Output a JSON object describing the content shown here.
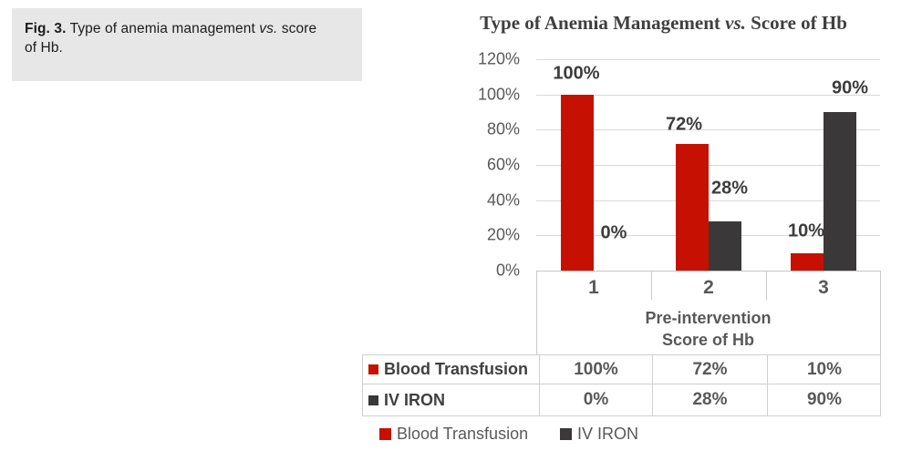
{
  "caption": {
    "fig_label": "Fig. 3.",
    "text_before_vs": " Type of anemia management ",
    "vs_word": "vs.",
    "text_after_vs": " score of Hb."
  },
  "chart": {
    "title_before_vs": "Type of Anemia Management ",
    "title_vs": "vs.",
    "title_after_vs": " Score of Hb",
    "xlabel_line1": "Pre-intervention",
    "xlabel_line2": "Score of Hb"
  },
  "chart_data": {
    "type": "bar",
    "title": "Type of Anemia Management vs. Score of Hb",
    "categories": [
      "1",
      "2",
      "3"
    ],
    "series": [
      {
        "name": "Blood Transfusion",
        "color": "#c61102",
        "values": [
          100,
          72,
          10
        ],
        "value_labels": [
          "100%",
          "72%",
          "10%"
        ]
      },
      {
        "name": "IV IRON",
        "color": "#3a3838",
        "values": [
          0,
          28,
          90
        ],
        "value_labels": [
          "0%",
          "28%",
          "90%"
        ]
      }
    ],
    "xlabel": "Pre-intervention Score of Hb",
    "ylabel": "",
    "ylim": [
      0,
      120
    ],
    "ytick_step": 20,
    "ytick_labels": [
      "0%",
      "20%",
      "40%",
      "60%",
      "80%",
      "100%",
      "120%"
    ],
    "grid": true,
    "legend_position": "bottom",
    "data_table_shown": true
  },
  "data_table": {
    "rows": [
      {
        "swatch_color": "#c61102",
        "label": "Blood Transfusion",
        "values": [
          "100%",
          "72%",
          "10%"
        ]
      },
      {
        "swatch_color": "#3a3838",
        "label": "IV IRON",
        "values": [
          "0%",
          "28%",
          "90%"
        ]
      }
    ]
  },
  "legend": {
    "items": [
      {
        "swatch_color": "#c61102",
        "label": "Blood Transfusion"
      },
      {
        "swatch_color": "#3a3838",
        "label": "IV IRON"
      }
    ]
  }
}
